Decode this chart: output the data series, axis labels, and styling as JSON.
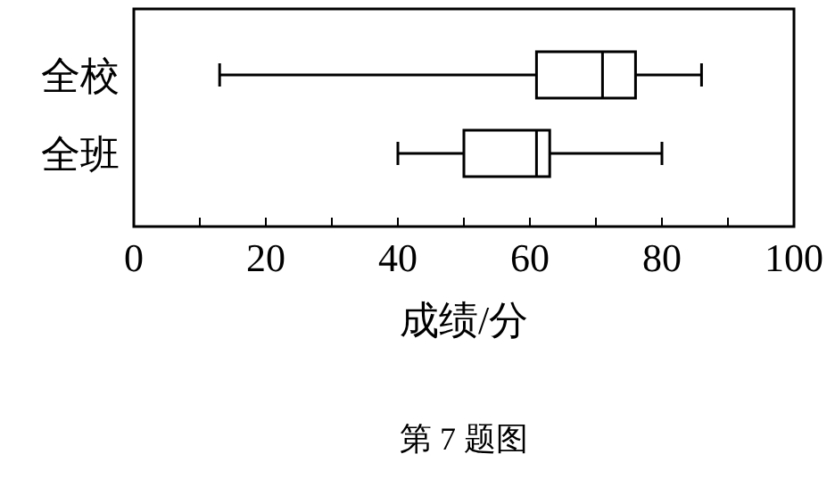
{
  "chart_data": {
    "type": "box",
    "orientation": "horizontal",
    "categories": [
      "全校",
      "全班"
    ],
    "boxes": [
      {
        "low": 13,
        "q1": 61,
        "median": 71,
        "q3": 76,
        "high": 86
      },
      {
        "low": 40,
        "q1": 50,
        "median": 61,
        "q3": 63,
        "high": 80
      }
    ],
    "color": "#000000",
    "xlabel": "成绩/分",
    "xlim": [
      0,
      100
    ],
    "xticks": [
      0,
      {
        "value": 10,
        "label": null
      },
      20,
      {
        "value": 30,
        "label": null
      },
      40,
      {
        "value": 50,
        "label": null
      },
      60,
      {
        "value": 70,
        "label": null
      },
      80,
      {
        "value": 90,
        "label": null
      },
      100
    ],
    "grid": false,
    "annotations": [
      "第 7 题图"
    ]
  }
}
